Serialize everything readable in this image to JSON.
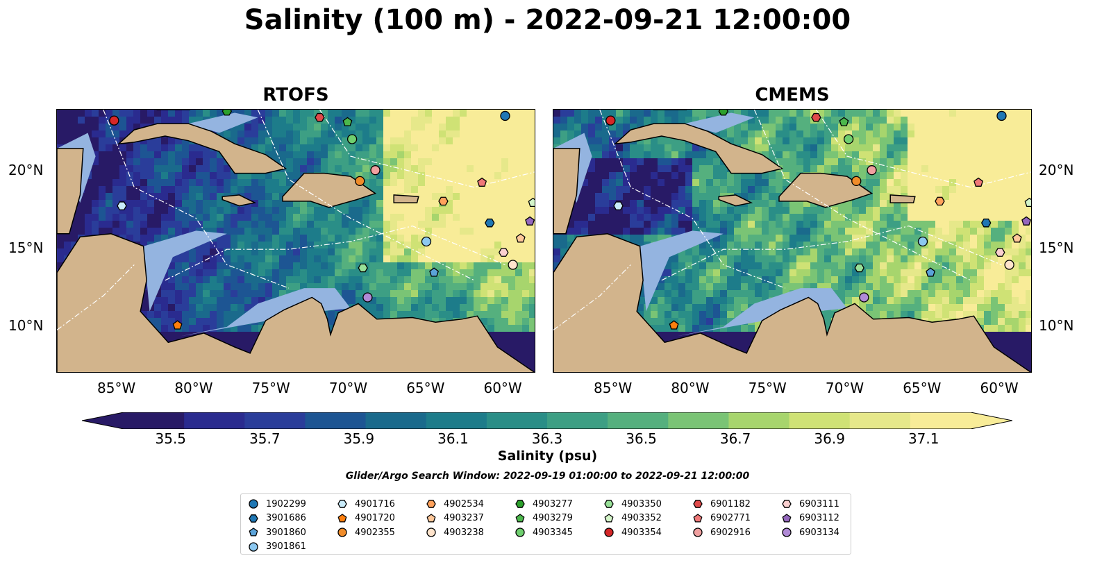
{
  "title": "Salinity (100 m) - 2022-09-21 12:00:00",
  "colors": {
    "land": "#d2b48c",
    "shelf": "#94b4e0",
    "colormap": [
      "#281a66",
      "#2a2b8f",
      "#2a3d9a",
      "#1d5593",
      "#1a6a8c",
      "#1d7c8a",
      "#2a8e87",
      "#3d9f84",
      "#55b07e",
      "#7ac475",
      "#a7d56d",
      "#cfe275",
      "#e6e88a",
      "#f8ec98"
    ]
  },
  "chart_data": {
    "type": "heatmap",
    "panels": [
      {
        "title": "RTOFS"
      },
      {
        "title": "CMEMS"
      }
    ],
    "xlim": [
      -89,
      -58
    ],
    "ylim": [
      7,
      24
    ],
    "x_ticks": [
      "85°W",
      "80°W",
      "75°W",
      "70°W",
      "65°W",
      "60°W"
    ],
    "x_tick_values": [
      -85,
      -80,
      -75,
      -70,
      -65,
      -60
    ],
    "y_ticks": [
      "20°N",
      "15°N",
      "10°N"
    ],
    "y_tick_values": [
      20,
      15,
      10
    ],
    "colorbar": {
      "label": "Salinity (psu)",
      "min": 35.4,
      "max": 37.2,
      "ticks": [
        "35.5",
        "35.7",
        "35.9",
        "36.1",
        "36.3",
        "36.5",
        "36.7",
        "36.9",
        "37.1"
      ],
      "tick_values": [
        35.5,
        35.7,
        35.9,
        36.1,
        36.3,
        36.5,
        36.7,
        36.9,
        37.1
      ],
      "extend": "both"
    },
    "search_window": "Glider/Argo Search Window: 2022-09-19 01:00:00 to 2022-09-21 12:00:00",
    "floats": [
      {
        "id": "1902299",
        "marker": "circle",
        "color": "#1f77b4",
        "lon": -60.0,
        "lat": 23.6
      },
      {
        "id": "3901686",
        "marker": "hexagon",
        "color": "#1f77b4",
        "lon": -61.0,
        "lat": 16.7
      },
      {
        "id": "3901860",
        "marker": "pentagon",
        "color": "#5ba3d9",
        "lon": -64.6,
        "lat": 13.5
      },
      {
        "id": "3901861",
        "marker": "circle",
        "color": "#8cc8f0",
        "lon": -65.1,
        "lat": 15.5
      },
      {
        "id": "4901716",
        "marker": "hexagon",
        "color": "#c9ecfa",
        "lon": -84.8,
        "lat": 17.8
      },
      {
        "id": "4901720",
        "marker": "pentagon",
        "color": "#ff7f0e",
        "lon": -81.2,
        "lat": 10.1
      },
      {
        "id": "4902355",
        "marker": "circle",
        "color": "#f08c2a",
        "lon": -69.4,
        "lat": 19.4
      },
      {
        "id": "4902534",
        "marker": "hexagon",
        "color": "#ffa25c",
        "lon": -64.0,
        "lat": 18.1
      },
      {
        "id": "4903237",
        "marker": "pentagon",
        "color": "#ffc89a",
        "lon": -59.0,
        "lat": 15.7
      },
      {
        "id": "4903238",
        "marker": "circle",
        "color": "#ffe4cc",
        "lon": -59.5,
        "lat": 14.0
      },
      {
        "id": "4903277",
        "marker": "hexagon",
        "color": "#2ca02c",
        "lon": -78.0,
        "lat": 23.9
      },
      {
        "id": "4903279",
        "marker": "pentagon",
        "color": "#4cb84c",
        "lon": -70.2,
        "lat": 23.2
      },
      {
        "id": "4903345",
        "marker": "circle",
        "color": "#6fcf6f",
        "lon": -69.9,
        "lat": 22.1
      },
      {
        "id": "4903350",
        "marker": "hexagon",
        "color": "#98e098",
        "lon": -69.2,
        "lat": 13.8
      },
      {
        "id": "4903352",
        "marker": "pentagon",
        "color": "#d4f5c9",
        "lon": -58.2,
        "lat": 18.0
      },
      {
        "id": "4903354",
        "marker": "circle",
        "color": "#d62728",
        "lon": -85.3,
        "lat": 23.3
      },
      {
        "id": "6901182",
        "marker": "hexagon",
        "color": "#e04a4a",
        "lon": -72.0,
        "lat": 23.5
      },
      {
        "id": "6902771",
        "marker": "pentagon",
        "color": "#ef7878",
        "lon": -61.5,
        "lat": 19.3
      },
      {
        "id": "6902916",
        "marker": "circle",
        "color": "#f0a0a0",
        "lon": -68.4,
        "lat": 20.1
      },
      {
        "id": "6903111",
        "marker": "hexagon",
        "color": "#fad0d0",
        "lon": -60.1,
        "lat": 14.8
      },
      {
        "id": "6903112",
        "marker": "pentagon",
        "color": "#9467bd",
        "lon": -58.4,
        "lat": 16.8
      },
      {
        "id": "6903134",
        "marker": "circle",
        "color": "#b08ad6",
        "lon": -68.9,
        "lat": 11.9
      }
    ]
  }
}
